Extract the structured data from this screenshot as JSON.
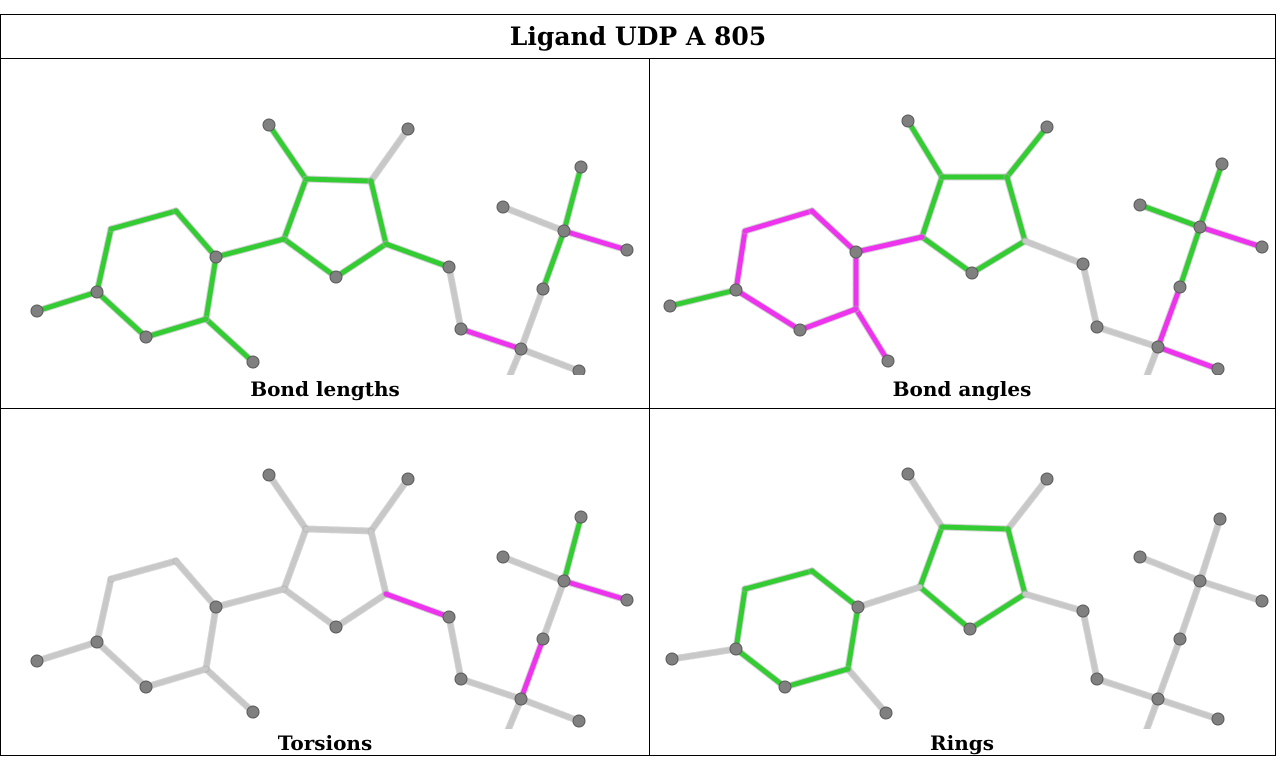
{
  "title": "Ligand UDP A 805",
  "panels": [
    {
      "caption": "Bond lengths",
      "cyc": [
        "g",
        "g",
        "g",
        "g",
        "g",
        "g",
        "g",
        "g",
        "g",
        "g",
        "g",
        "g",
        "g",
        "w",
        "m",
        "w",
        "g",
        "w",
        "m",
        "g",
        "w"
      ]
    },
    {
      "caption": "Bond angles",
      "cyc": [
        "m",
        "m",
        "m",
        "m",
        "m",
        "m",
        "g",
        "g",
        "g",
        "g",
        "g",
        "m",
        "w",
        "w",
        "w",
        "m",
        "g",
        "g",
        "m",
        "g",
        "m"
      ]
    },
    {
      "caption": "Torsions",
      "cyc": [
        "w",
        "w",
        "w",
        "w",
        "w",
        "w",
        "w",
        "w",
        "w",
        "w",
        "w",
        "w",
        "m",
        "w",
        "w",
        "m",
        "w",
        "w",
        "m",
        "g",
        "w"
      ]
    },
    {
      "caption": "Rings",
      "cyc": [
        "g",
        "g",
        "g",
        "g",
        "g",
        "g",
        "g",
        "g",
        "g",
        "g",
        "g",
        "w",
        "w",
        "w",
        "w",
        "w",
        "w",
        "w",
        "w",
        "w",
        "w"
      ]
    }
  ],
  "colors": {
    "g": "#33cc33",
    "m": "#ee33ee",
    "w": "#c8c8c8",
    "atom": "#808080"
  }
}
